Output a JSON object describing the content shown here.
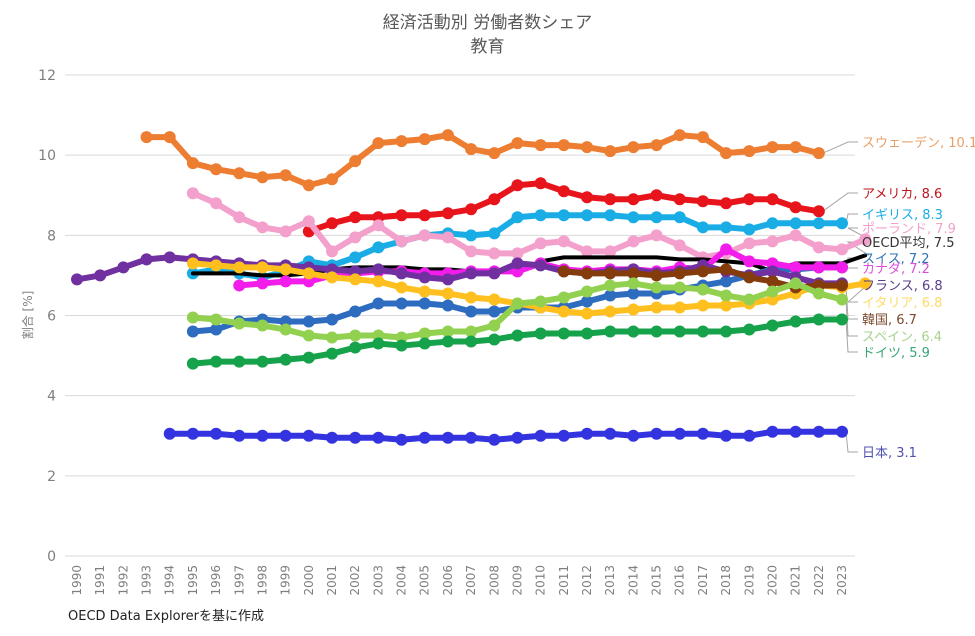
{
  "title": "経済活動別 労働者数シェア",
  "subtitle": "教育",
  "source": "OECD Data Explorerを基に作成",
  "chart_data": {
    "type": "line",
    "title": "経済活動別 労働者数シェア",
    "subtitle": "教育",
    "xlabel": "",
    "ylabel": "割合 [%]",
    "ylim": [
      0,
      12
    ],
    "yticks": [
      0,
      2,
      4,
      6,
      8,
      10,
      12
    ],
    "xlim": [
      1990,
      2023
    ],
    "x": [
      1990,
      1991,
      1992,
      1993,
      1994,
      1995,
      1996,
      1997,
      1998,
      1999,
      2000,
      2001,
      2002,
      2003,
      2004,
      2005,
      2006,
      2007,
      2008,
      2009,
      2010,
      2011,
      2012,
      2013,
      2014,
      2015,
      2016,
      2017,
      2018,
      2019,
      2020,
      2021,
      2022,
      2023
    ],
    "grid": "horizontal",
    "legend": "end-of-line labels (right)",
    "series": [
      {
        "name": "スウェーデン",
        "end_label": "スウェーデン, 10.1",
        "color": "#ED7D31",
        "label_color": "#E8A06A",
        "start": 1993,
        "values": [
          10.45,
          10.45,
          9.8,
          9.65,
          9.55,
          9.45,
          9.5,
          9.25,
          9.4,
          9.85,
          10.3,
          10.35,
          10.4,
          10.5,
          10.15,
          10.05,
          10.3,
          10.25,
          10.25,
          10.2,
          10.1,
          10.2,
          10.25,
          10.5,
          10.45,
          10.05,
          10.1,
          10.2,
          10.2,
          10.05
        ]
      },
      {
        "name": "アメリカ",
        "end_label": "アメリカ, 8.6",
        "color": "#E8141C",
        "label_color": "#C0151C",
        "start": 2000,
        "values": [
          8.1,
          8.3,
          8.45,
          8.45,
          8.5,
          8.5,
          8.55,
          8.65,
          8.9,
          9.25,
          9.3,
          9.1,
          8.95,
          8.9,
          8.9,
          9.0,
          8.9,
          8.85,
          8.8,
          8.9,
          8.9,
          8.7,
          8.6
        ]
      },
      {
        "name": "イギリス",
        "end_label": "イギリス, 8.3",
        "color": "#1AADE5",
        "label_color": "#1AADE5",
        "start": 1995,
        "values": [
          7.05,
          7.15,
          7.05,
          6.95,
          7.1,
          7.35,
          7.25,
          7.45,
          7.7,
          7.85,
          8.0,
          8.05,
          8.0,
          8.05,
          8.45,
          8.5,
          8.5,
          8.5,
          8.5,
          8.45,
          8.45,
          8.45,
          8.2,
          8.2,
          8.15,
          8.3,
          8.3,
          8.3,
          8.3
        ]
      },
      {
        "name": "ポーランド",
        "end_label": "ポーランド, 7.9",
        "color": "#F4A0CC",
        "label_color": "#F4A0CC",
        "start": 1995,
        "values": [
          9.05,
          8.8,
          8.45,
          8.2,
          8.1,
          8.35,
          7.6,
          7.95,
          8.25,
          7.85,
          8.0,
          7.95,
          7.6,
          7.55,
          7.55,
          7.8,
          7.85,
          7.6,
          7.6,
          7.85,
          8.0,
          7.75,
          7.45,
          7.55,
          7.8,
          7.85,
          8.0,
          7.7,
          7.65,
          7.9
        ]
      },
      {
        "name": "OECD平均",
        "end_label": "OECD平均, 7.5",
        "color": "#000000",
        "label_color": "#333333",
        "start": 1995,
        "values": [
          7.05,
          7.05,
          7.05,
          7.0,
          7.0,
          7.05,
          7.15,
          7.2,
          7.2,
          7.2,
          7.15,
          7.15,
          7.1,
          7.1,
          7.1,
          7.35,
          7.45,
          7.45,
          7.45,
          7.45,
          7.45,
          7.4,
          7.4,
          7.35,
          7.3,
          7.1,
          7.3,
          7.3,
          7.3,
          7.5
        ]
      },
      {
        "name": "スイス",
        "end_label": "スイス, 7.2",
        "color": "#2E6CC0",
        "label_color": "#2E75B6",
        "start": 1995,
        "values": [
          5.6,
          5.65,
          5.85,
          5.9,
          5.85,
          5.85,
          5.9,
          6.1,
          6.3,
          6.3,
          6.3,
          6.25,
          6.1,
          6.1,
          6.2,
          6.2,
          6.2,
          6.35,
          6.5,
          6.55,
          6.55,
          6.65,
          6.75,
          6.85,
          7.0,
          7.15,
          7.15,
          7.2,
          7.2
        ]
      },
      {
        "name": "カナダ",
        "end_label": "カナダ, 7.2",
        "color": "#F21DEB",
        "label_color": "#D94FD9",
        "start": 1997,
        "values": [
          6.75,
          6.8,
          6.85,
          6.85,
          7.0,
          7.05,
          7.1,
          7.1,
          7.05,
          7.05,
          7.1,
          7.1,
          7.1,
          7.3,
          7.15,
          7.1,
          7.15,
          7.15,
          7.1,
          7.2,
          7.15,
          7.65,
          7.35,
          7.3,
          7.2,
          7.2,
          7.2
        ]
      },
      {
        "name": "フランス",
        "end_label": "フランス, 6.8",
        "color": "#7030A0",
        "label_color": "#5A3E8C",
        "start": 1990,
        "values": [
          6.9,
          7.0,
          7.2,
          7.4,
          7.45,
          7.4,
          7.35,
          7.3,
          7.25,
          7.25,
          7.2,
          7.15,
          7.1,
          7.15,
          7.05,
          6.95,
          6.9,
          7.05,
          7.05,
          7.3,
          7.25,
          7.1,
          7.05,
          7.1,
          7.15,
          7.05,
          7.1,
          7.25,
          7.1,
          7.0,
          7.1,
          6.95,
          6.8,
          6.8
        ]
      },
      {
        "name": "イタリア",
        "end_label": "イタリア, 6.8",
        "color": "#FFC01F",
        "label_color": "#FFD966",
        "start": 1995,
        "values": [
          7.3,
          7.25,
          7.2,
          7.2,
          7.15,
          7.05,
          6.95,
          6.9,
          6.85,
          6.7,
          6.6,
          6.55,
          6.45,
          6.4,
          6.3,
          6.2,
          6.1,
          6.05,
          6.1,
          6.15,
          6.2,
          6.2,
          6.25,
          6.25,
          6.3,
          6.4,
          6.55,
          6.75,
          6.7,
          6.8
        ]
      },
      {
        "name": "韓国",
        "end_label": "韓国, 6.7",
        "color": "#843C0C",
        "label_color": "#7B4A2E",
        "start": 2011,
        "values": [
          7.1,
          7.05,
          7.05,
          7.05,
          7.0,
          7.05,
          7.1,
          7.15,
          6.95,
          6.85,
          6.7,
          6.75,
          6.75
        ]
      },
      {
        "name": "スペイン",
        "end_label": "スペイン, 6.4",
        "color": "#92D050",
        "label_color": "#A9D18E",
        "start": 1995,
        "values": [
          5.95,
          5.9,
          5.8,
          5.75,
          5.65,
          5.5,
          5.45,
          5.5,
          5.5,
          5.45,
          5.55,
          5.6,
          5.6,
          5.75,
          6.3,
          6.35,
          6.45,
          6.6,
          6.75,
          6.8,
          6.7,
          6.7,
          6.65,
          6.5,
          6.4,
          6.6,
          6.8,
          6.55,
          6.4
        ]
      },
      {
        "name": "ドイツ",
        "end_label": "ドイツ, 5.9",
        "color": "#15A24A",
        "label_color": "#3AA575",
        "start": 1995,
        "values": [
          4.8,
          4.85,
          4.85,
          4.85,
          4.9,
          4.95,
          5.05,
          5.2,
          5.3,
          5.25,
          5.3,
          5.35,
          5.35,
          5.4,
          5.5,
          5.55,
          5.55,
          5.55,
          5.6,
          5.6,
          5.6,
          5.6,
          5.6,
          5.6,
          5.65,
          5.75,
          5.85,
          5.9,
          5.9
        ]
      },
      {
        "name": "日本",
        "end_label": "日本, 3.1",
        "color": "#3333E0",
        "label_color": "#5050B0",
        "start": 1994,
        "values": [
          3.05,
          3.05,
          3.05,
          3.0,
          3.0,
          3.0,
          3.0,
          2.95,
          2.95,
          2.95,
          2.9,
          2.95,
          2.95,
          2.95,
          2.9,
          2.95,
          3.0,
          3.0,
          3.05,
          3.05,
          3.0,
          3.05,
          3.05,
          3.05,
          3.0,
          3.0,
          3.1,
          3.1,
          3.1,
          3.1
        ]
      }
    ]
  }
}
